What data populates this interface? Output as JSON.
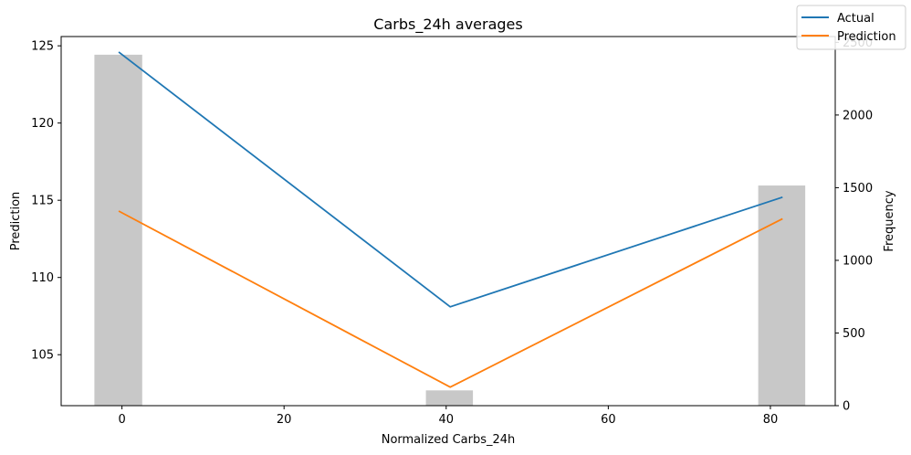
{
  "chart_data": {
    "type": "bar+line",
    "title": "Carbs_24h averages",
    "xlabel": "Normalized Carbs_24h",
    "ylabel_left": "Prediction",
    "ylabel_right": "Frequency",
    "xlim": [
      -7.5,
      88
    ],
    "ylim_left": [
      101.7,
      125.6
    ],
    "ylim_right": [
      0,
      2540
    ],
    "x_ticks": [
      0,
      20,
      40,
      60,
      80
    ],
    "y_ticks_left": [
      105,
      110,
      115,
      120,
      125
    ],
    "y_ticks_right": [
      0,
      500,
      1000,
      1500,
      2000,
      2500
    ],
    "histogram": {
      "color": "#c8c8c8",
      "bins": [
        {
          "x0": -3.4,
          "x1": 2.5,
          "count": 2415
        },
        {
          "x0": 37.5,
          "x1": 43.3,
          "count": 105
        },
        {
          "x0": 78.5,
          "x1": 84.3,
          "count": 1515
        }
      ]
    },
    "series": [
      {
        "name": "Actual",
        "color": "#1f77b4",
        "x": [
          -0.4,
          40.5,
          81.5
        ],
        "y": [
          124.6,
          108.1,
          115.2
        ]
      },
      {
        "name": "Prediction",
        "color": "#ff7f0e",
        "x": [
          -0.4,
          40.5,
          81.5
        ],
        "y": [
          114.3,
          102.9,
          113.8
        ]
      }
    ],
    "legend": {
      "position": "top-right",
      "entries": [
        "Actual",
        "Prediction"
      ]
    }
  }
}
